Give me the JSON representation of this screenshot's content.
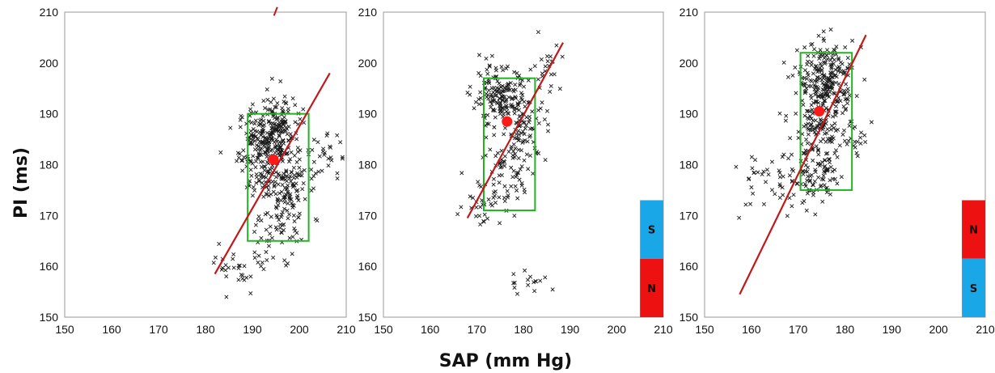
{
  "figure": {
    "ylabel": "PI (ms)",
    "xlabel": "SAP (mm Hg)"
  },
  "chart_data": [
    {
      "type": "scatter",
      "xlabel": "SAP (mm Hg)",
      "ylabel": "PI (ms)",
      "xlim": [
        150,
        210
      ],
      "ylim": [
        150,
        210
      ],
      "xticks": [
        "150",
        "160",
        "170",
        "180",
        "190",
        "200",
        "210"
      ],
      "yticks": [
        "150",
        "160",
        "170",
        "180",
        "190",
        "200",
        "210"
      ],
      "grid": false,
      "marker": "x",
      "point_color": "#1a1a1a",
      "clusters": [
        {
          "cx": 193,
          "cy": 183,
          "sx": 3.0,
          "sy": 4.5,
          "n": 260
        },
        {
          "cx": 197,
          "cy": 176,
          "sx": 2.5,
          "sy": 6.0,
          "n": 150
        },
        {
          "cx": 195,
          "cy": 188,
          "sx": 2.0,
          "sy": 3.0,
          "n": 70
        },
        {
          "cx": 205,
          "cy": 181,
          "sx": 2.0,
          "sy": 2.5,
          "n": 28
        },
        {
          "cx": 188,
          "cy": 160,
          "sx": 3.0,
          "sy": 2.0,
          "n": 34
        },
        {
          "cx": 195,
          "cy": 166,
          "sx": 2.5,
          "sy": 2.0,
          "n": 22
        }
      ],
      "regression_line": {
        "x": [
          182,
          206.5
        ],
        "y": [
          158.5,
          198
        ],
        "color": "#c0181b"
      },
      "mean_point": {
        "x": 194.5,
        "y": 181,
        "color": "#ff1a1a"
      },
      "box": {
        "x": [
          189,
          202
        ],
        "y": [
          165,
          190
        ],
        "color": "#22b222"
      },
      "extra_line": {
        "x": [
          194.6,
          195.3
        ],
        "y": [
          209.3,
          211
        ],
        "color": "#c0181b"
      },
      "stack_bar": null
    },
    {
      "type": "scatter",
      "xlabel": "",
      "ylabel": "",
      "xlim": [
        150,
        210
      ],
      "ylim": [
        150,
        210
      ],
      "xticks": [
        "150",
        "160",
        "170",
        "180",
        "190",
        "200",
        "210"
      ],
      "yticks": [
        "150",
        "160",
        "170",
        "180",
        "190",
        "200",
        "210"
      ],
      "grid": false,
      "marker": "x",
      "point_color": "#1a1a1a",
      "clusters": [
        {
          "cx": 175,
          "cy": 193,
          "sx": 3.0,
          "sy": 3.0,
          "n": 170
        },
        {
          "cx": 180,
          "cy": 187,
          "sx": 2.5,
          "sy": 3.0,
          "n": 80
        },
        {
          "cx": 177,
          "cy": 178,
          "sx": 3.0,
          "sy": 4.0,
          "n": 60
        },
        {
          "cx": 171,
          "cy": 173,
          "sx": 2.0,
          "sy": 2.5,
          "n": 30
        },
        {
          "cx": 185,
          "cy": 199,
          "sx": 1.6,
          "sy": 2.5,
          "n": 24
        },
        {
          "cx": 182,
          "cy": 157,
          "sx": 2.5,
          "sy": 1.4,
          "n": 16
        }
      ],
      "regression_line": {
        "x": [
          168,
          188.5
        ],
        "y": [
          169.5,
          204
        ],
        "color": "#c0181b"
      },
      "mean_point": {
        "x": 176.5,
        "y": 188.5,
        "color": "#ff1a1a"
      },
      "box": {
        "x": [
          171.5,
          182.5
        ],
        "y": [
          171,
          197
        ],
        "color": "#22b222"
      },
      "extra_line": null,
      "stack_bar": {
        "x": [
          205,
          210
        ],
        "segments": [
          {
            "label": "S",
            "y": [
              161.5,
              173
            ],
            "color": "#1aa7e8"
          },
          {
            "label": "N",
            "y": [
              150,
              161.5
            ],
            "color": "#ee1111"
          }
        ]
      }
    },
    {
      "type": "scatter",
      "xlabel": "",
      "ylabel": "",
      "xlim": [
        150,
        210
      ],
      "ylim": [
        150,
        210
      ],
      "xticks": [
        "150",
        "160",
        "170",
        "180",
        "190",
        "200",
        "210"
      ],
      "yticks": [
        "150",
        "160",
        "170",
        "180",
        "190",
        "200",
        "210"
      ],
      "grid": false,
      "marker": "x",
      "point_color": "#1a1a1a",
      "clusters": [
        {
          "cx": 176,
          "cy": 197,
          "sx": 3.0,
          "sy": 3.5,
          "n": 220
        },
        {
          "cx": 175,
          "cy": 187,
          "sx": 3.0,
          "sy": 4.0,
          "n": 150
        },
        {
          "cx": 174,
          "cy": 177,
          "sx": 2.5,
          "sy": 3.0,
          "n": 70
        },
        {
          "cx": 164,
          "cy": 176,
          "sx": 4.0,
          "sy": 3.5,
          "n": 45
        },
        {
          "cx": 182,
          "cy": 185,
          "sx": 1.2,
          "sy": 2.0,
          "n": 14
        }
      ],
      "regression_line": {
        "x": [
          157.5,
          184.5
        ],
        "y": [
          154.5,
          205.5
        ],
        "color": "#c0181b"
      },
      "mean_point": {
        "x": 174.5,
        "y": 190.5,
        "color": "#ff1a1a"
      },
      "box": {
        "x": [
          170.5,
          181.5
        ],
        "y": [
          175,
          202
        ],
        "color": "#22b222"
      },
      "extra_line": null,
      "stack_bar": {
        "x": [
          205,
          210
        ],
        "segments": [
          {
            "label": "N",
            "y": [
              161.5,
              173
            ],
            "color": "#ee1111"
          },
          {
            "label": "S",
            "y": [
              150,
              161.5
            ],
            "color": "#1aa7e8"
          }
        ]
      }
    }
  ]
}
